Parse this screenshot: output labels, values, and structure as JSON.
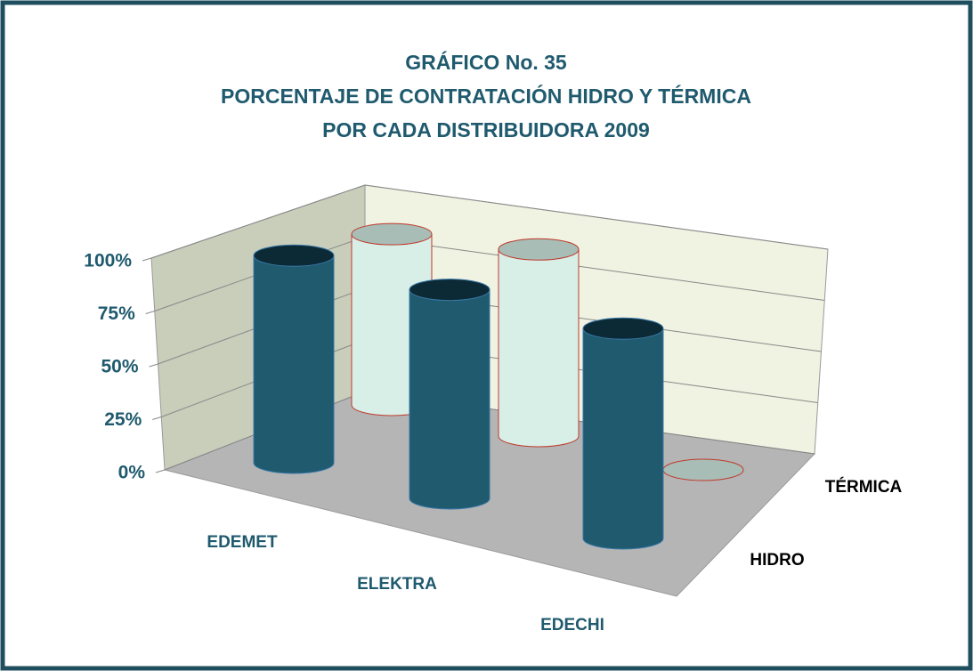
{
  "chart_data": {
    "type": "bar3d",
    "title": "GRÁFICO  No.  35",
    "subtitle": [
      "PORCENTAJE DE CONTRATACIÓN HIDRO Y TÉRMICA",
      "POR  CADA  DISTRIBUIDORA   2009"
    ],
    "categories": [
      "EDEMET",
      "ELEKTRA",
      "EDECHI"
    ],
    "series": [
      {
        "name": "HIDRO",
        "color": "#1f5a6e",
        "values": [
          97,
          93,
          90
        ]
      },
      {
        "name": "TÉRMICA",
        "color": "#d8efe8",
        "values": [
          88,
          92,
          0
        ]
      }
    ],
    "ylim": [
      0,
      100
    ],
    "yticks": [
      {
        "value": 0,
        "label": "0%"
      },
      {
        "value": 25,
        "label": "25%"
      },
      {
        "value": 50,
        "label": "50%"
      },
      {
        "value": 75,
        "label": "75%"
      },
      {
        "value": 100,
        "label": "100%"
      }
    ],
    "grid": true
  }
}
